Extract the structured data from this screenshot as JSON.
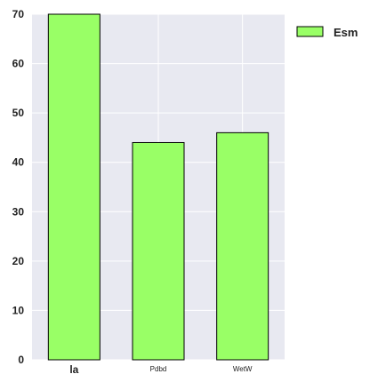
{
  "chart_data": {
    "type": "bar",
    "categories": [
      "la",
      "Pdbd",
      "WetW"
    ],
    "series": [
      {
        "name": "Esm",
        "values": [
          70,
          44,
          46
        ]
      }
    ],
    "ylim": [
      0,
      70
    ],
    "yticks": [
      0,
      10,
      20,
      30,
      40,
      50,
      60,
      70
    ],
    "grid": true,
    "legend_position": "top-right"
  },
  "colors": {
    "bar_fill": "#99ff66",
    "bar_stroke": "#000000",
    "plot_background": "#e8e9f1",
    "grid_line": "#ffffff"
  }
}
